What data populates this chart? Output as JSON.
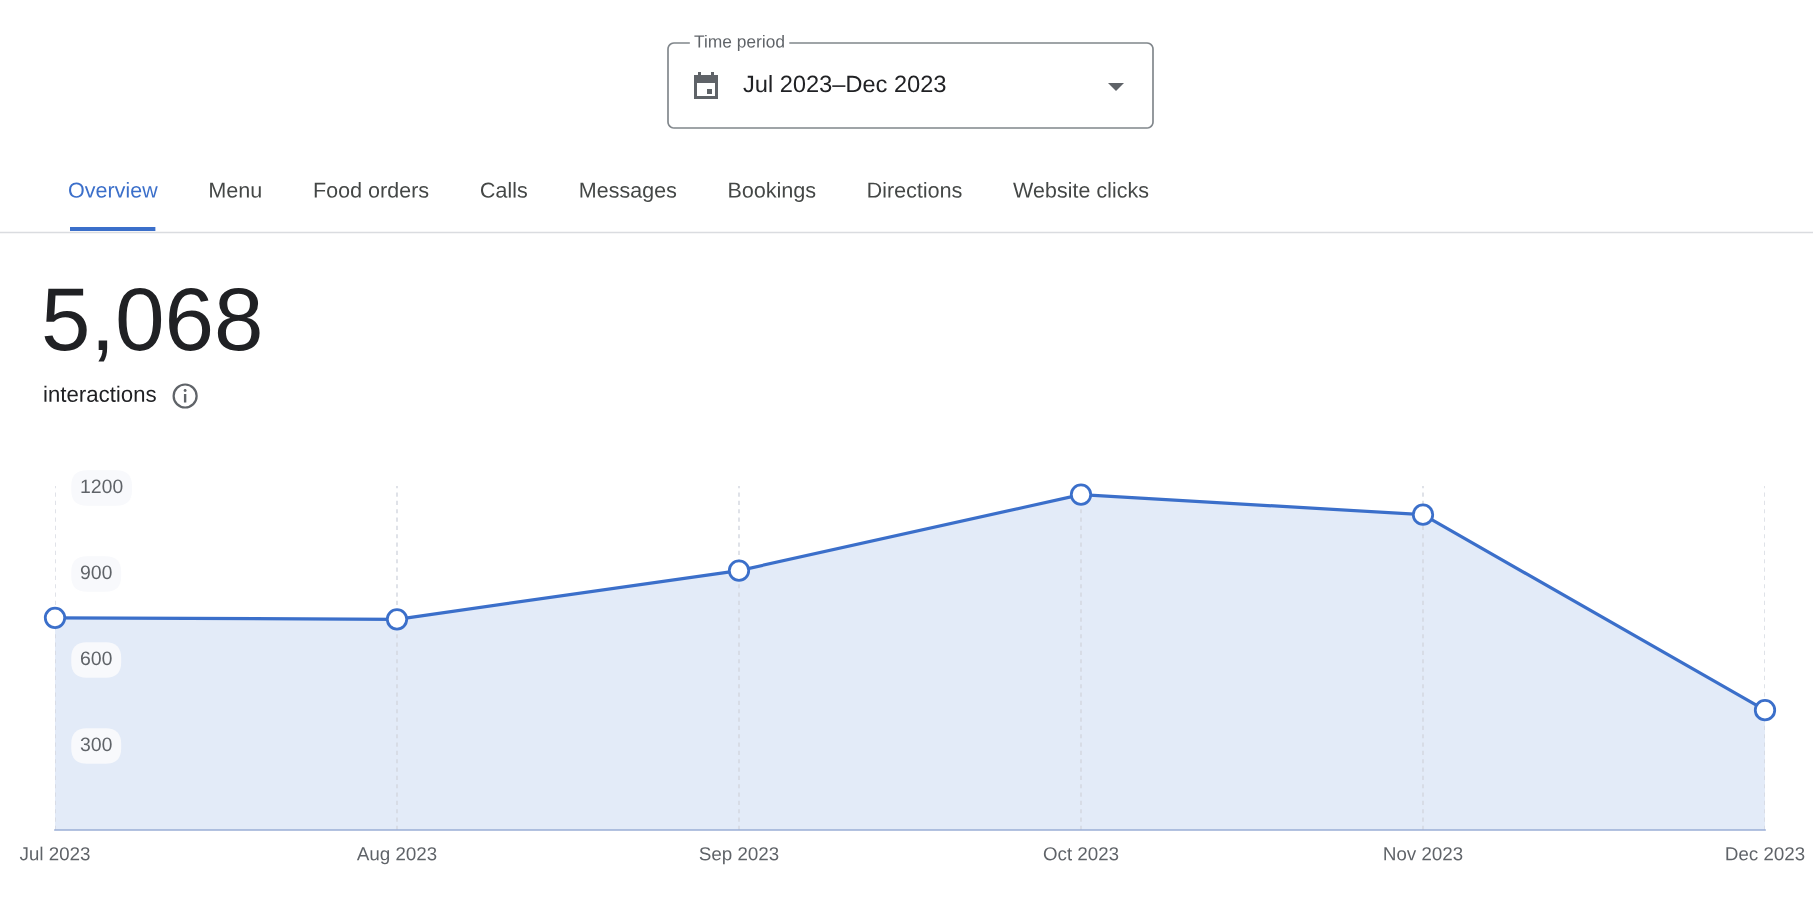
{
  "chart_data": {
    "type": "area",
    "title": "5,068",
    "subtitle": "interactions",
    "categories": [
      "Jul 2023",
      "Aug 2023",
      "Sep 2023",
      "Oct 2023",
      "Nov 2023",
      "Dec 2023"
    ],
    "series": [
      {
        "color": "#3b6fca",
        "values": [
          740,
          735,
          905,
          1170,
          1100,
          418
        ]
      }
    ],
    "ylim": [
      0,
      1200
    ],
    "yticks": [
      300,
      600,
      900,
      1200
    ],
    "grid": "x",
    "marker": "circle",
    "line_style": "solid",
    "annotations": [
      "Time period",
      "Jul 2023–Dec 2023",
      "Overview",
      "Menu",
      "Food orders",
      "Calls",
      "Messages",
      "Bookings",
      "Directions",
      "Website clicks"
    ]
  }
}
